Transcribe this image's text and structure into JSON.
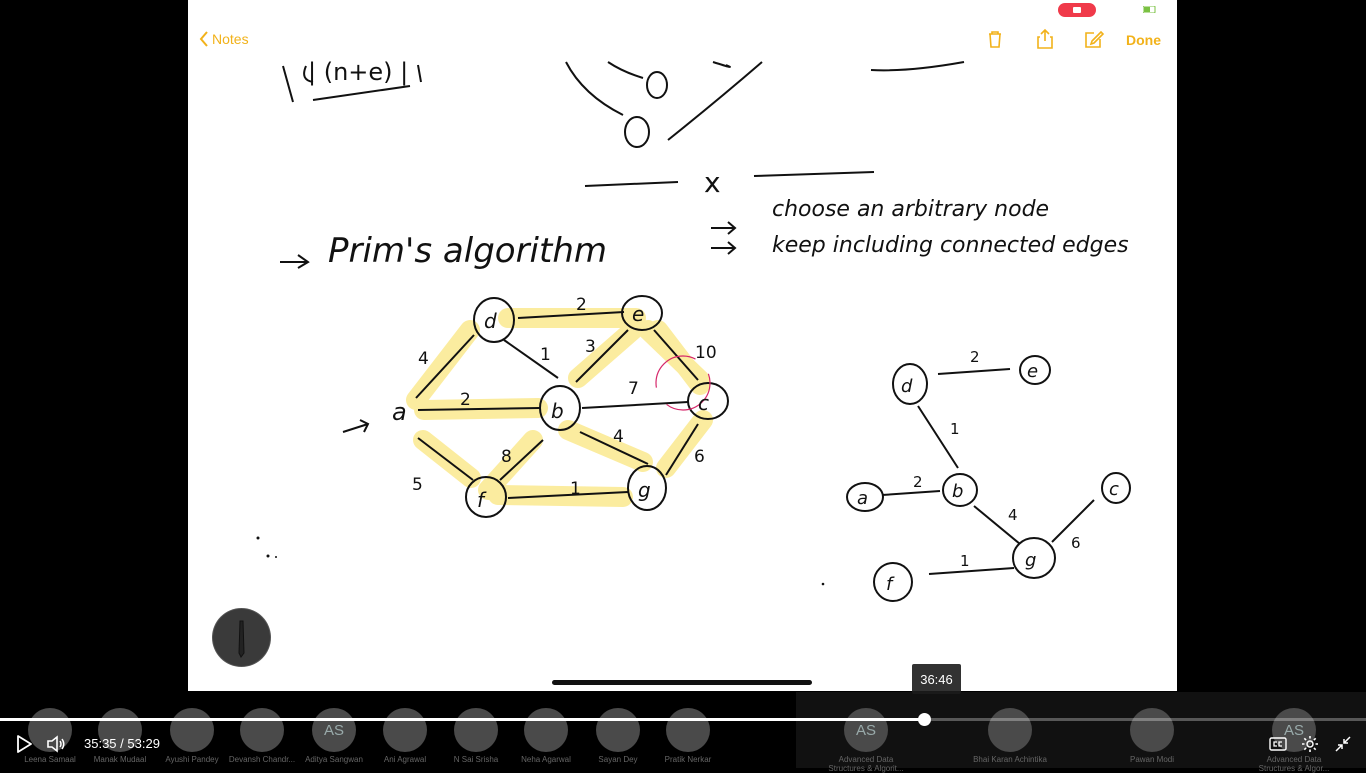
{
  "notes_app": {
    "back_label": "Notes",
    "done_label": "Done"
  },
  "handwriting": {
    "top_formula": "| (n+e) |",
    "x_mark": "x",
    "heading": "Prim's algorithm",
    "steps": [
      "choose an arbitrary node",
      "keep including connected edges"
    ]
  },
  "graph": {
    "nodes": [
      "d",
      "e",
      "a",
      "b",
      "c",
      "f",
      "g"
    ],
    "edge_weights": [
      "2",
      "4",
      "1",
      "3",
      "10",
      "2",
      "7",
      "5",
      "8",
      "4",
      "6",
      "1"
    ]
  },
  "mst": {
    "nodes": [
      "d",
      "e",
      "a",
      "b",
      "c",
      "g",
      "f"
    ],
    "edge_weights": [
      "2",
      "1",
      "2",
      "4",
      "6",
      "1"
    ]
  },
  "player": {
    "current_time": "35:35",
    "separator": "/",
    "duration": "53:29",
    "hover_time": "36:46",
    "progress_fraction": 0.677
  },
  "participants": [
    {
      "initials": "",
      "name": "Leena Samaal"
    },
    {
      "initials": "",
      "name": "Manak Mudaal"
    },
    {
      "initials": "",
      "name": "Ayushi Pandey"
    },
    {
      "initials": "",
      "name": "Devansh Chandr..."
    },
    {
      "initials": "AS",
      "name": "Aditya Sangwan"
    },
    {
      "initials": "",
      "name": "Ani Agrawal"
    },
    {
      "initials": "",
      "name": "N Sai Srisha"
    },
    {
      "initials": "",
      "name": "Neha Agarwal"
    },
    {
      "initials": "",
      "name": "Sayan Dey"
    },
    {
      "initials": "",
      "name": "Pratik Nerkar"
    },
    {
      "initials": "AS",
      "name": "Advanced Data Structures & Algorit..."
    },
    {
      "initials": "",
      "name": "Bhai Karan Achintika"
    },
    {
      "initials": "",
      "name": "Pawan Modi"
    },
    {
      "initials": "AS",
      "name": "Advanced Data Structures & Algor..."
    }
  ]
}
